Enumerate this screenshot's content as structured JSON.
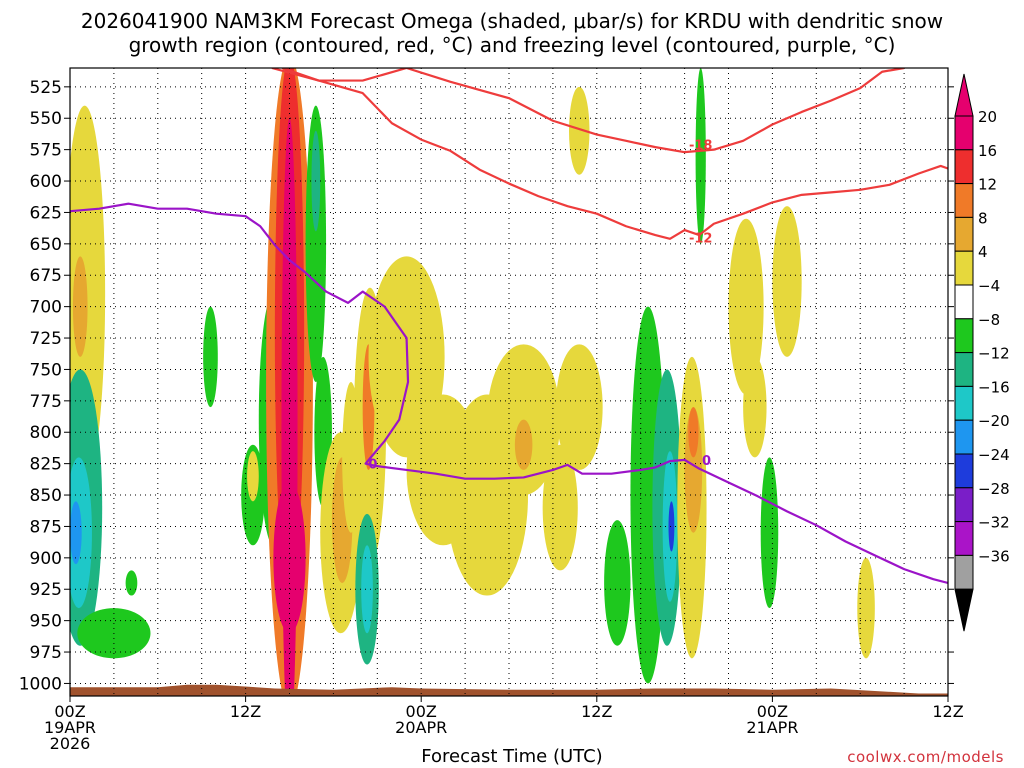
{
  "title_line1": "2026041900 NAM3KM Forecast Omega (shaded, μbar/s) for KRDU with dendritic snow",
  "title_line2": "growth region (contoured, red, °C) and freezing level (contoured, purple, °C)",
  "credit": "coolwx.com/models",
  "chart_data": {
    "type": "heatmap",
    "xlabel": "Forecast Time (UTC)",
    "ylabel": "",
    "x_range_hours": [
      0,
      60
    ],
    "y_range_mb": [
      1010,
      510
    ],
    "x_ticks": [
      {
        "h": 0,
        "line1": "00Z",
        "line2": "19APR",
        "line3": "2026"
      },
      {
        "h": 12,
        "line1": "12Z",
        "line2": "",
        "line3": ""
      },
      {
        "h": 24,
        "line1": "00Z",
        "line2": "20APR",
        "line3": ""
      },
      {
        "h": 36,
        "line1": "12Z",
        "line2": "",
        "line3": ""
      },
      {
        "h": 48,
        "line1": "00Z",
        "line2": "21APR",
        "line3": ""
      },
      {
        "h": 60,
        "line1": "12Z",
        "line2": "",
        "line3": ""
      }
    ],
    "y_ticks": [
      525,
      550,
      575,
      600,
      625,
      650,
      675,
      700,
      725,
      750,
      775,
      800,
      825,
      850,
      875,
      900,
      925,
      950,
      975,
      1000
    ],
    "grid": true,
    "colorbar": {
      "labels": [
        "20",
        "16",
        "12",
        "8",
        "4",
        "−4",
        "−8",
        "−12",
        "−16",
        "−20",
        "−24",
        "−28",
        "−32",
        "−36"
      ],
      "colors": [
        "#e5006e",
        "#ee2e2e",
        "#f07a28",
        "#e6a830",
        "#e6d83c",
        "#ffffff",
        "#1ec81e",
        "#1eb482",
        "#1ec8c8",
        "#1e96f0",
        "#1e3cdc",
        "#7a1ec8",
        "#aa14c8",
        "#a0a0a0"
      ],
      "top_arrow": "#e5006e",
      "bottom_arrow": "#000000"
    },
    "omega_features": [
      {
        "t": 1.0,
        "p": 690,
        "rx": 1.4,
        "ry": 150,
        "value": 6
      },
      {
        "t": 0.7,
        "p": 700,
        "rx": 0.5,
        "ry": 40,
        "value": 10
      },
      {
        "t": 0.7,
        "p": 860,
        "rx": 1.5,
        "ry": 110,
        "value": -11
      },
      {
        "t": 0.6,
        "p": 880,
        "rx": 0.9,
        "ry": 60,
        "value": -14
      },
      {
        "t": 0.4,
        "p": 880,
        "rx": 0.4,
        "ry": 25,
        "value": -17
      },
      {
        "t": 3.0,
        "p": 960,
        "rx": 2.5,
        "ry": 20,
        "value": -6
      },
      {
        "t": 4.2,
        "p": 920,
        "rx": 0.4,
        "ry": 10,
        "value": -6
      },
      {
        "t": 9.6,
        "p": 740,
        "rx": 0.5,
        "ry": 40,
        "value": -5
      },
      {
        "t": 12.5,
        "p": 850,
        "rx": 0.8,
        "ry": 40,
        "value": -6
      },
      {
        "t": 12.5,
        "p": 835,
        "rx": 0.4,
        "ry": 20,
        "value": 5
      },
      {
        "t": 13.9,
        "p": 790,
        "rx": 1.0,
        "ry": 100,
        "value": -6
      },
      {
        "t": 13.9,
        "p": 770,
        "rx": 0.5,
        "ry": 50,
        "value": -10
      },
      {
        "t": 15.0,
        "p": 760,
        "rx": 1.6,
        "ry": 260,
        "value": 12
      },
      {
        "t": 15.0,
        "p": 720,
        "rx": 1.0,
        "ry": 220,
        "value": 16
      },
      {
        "t": 15.0,
        "p": 800,
        "rx": 0.55,
        "ry": 250,
        "value": 20
      },
      {
        "t": 15.0,
        "p": 900,
        "rx": 1.1,
        "ry": 60,
        "value": 20
      },
      {
        "t": 16.8,
        "p": 650,
        "rx": 0.7,
        "ry": 110,
        "value": -6
      },
      {
        "t": 16.8,
        "p": 600,
        "rx": 0.3,
        "ry": 40,
        "value": -9
      },
      {
        "t": 17.3,
        "p": 800,
        "rx": 0.6,
        "ry": 60,
        "value": -6
      },
      {
        "t": 18.5,
        "p": 880,
        "rx": 1.4,
        "ry": 80,
        "value": 6
      },
      {
        "t": 18.6,
        "p": 870,
        "rx": 0.7,
        "ry": 50,
        "value": 10
      },
      {
        "t": 19.2,
        "p": 820,
        "rx": 0.6,
        "ry": 60,
        "value": 5
      },
      {
        "t": 20.5,
        "p": 795,
        "rx": 1.1,
        "ry": 110,
        "value": 5
      },
      {
        "t": 20.4,
        "p": 780,
        "rx": 0.4,
        "ry": 50,
        "value": 12
      },
      {
        "t": 20.3,
        "p": 925,
        "rx": 0.8,
        "ry": 60,
        "value": -8
      },
      {
        "t": 20.3,
        "p": 925,
        "rx": 0.4,
        "ry": 35,
        "value": -15
      },
      {
        "t": 23.0,
        "p": 740,
        "rx": 2.6,
        "ry": 80,
        "value": 5
      },
      {
        "t": 25.5,
        "p": 830,
        "rx": 2.5,
        "ry": 60,
        "value": 5
      },
      {
        "t": 28.5,
        "p": 850,
        "rx": 2.8,
        "ry": 80,
        "value": 5
      },
      {
        "t": 31.0,
        "p": 790,
        "rx": 2.5,
        "ry": 60,
        "value": 5
      },
      {
        "t": 31.0,
        "p": 810,
        "rx": 0.6,
        "ry": 20,
        "value": 9
      },
      {
        "t": 34.8,
        "p": 780,
        "rx": 1.6,
        "ry": 50,
        "value": 5
      },
      {
        "t": 33.5,
        "p": 860,
        "rx": 1.2,
        "ry": 50,
        "value": 5
      },
      {
        "t": 34.8,
        "p": 560,
        "rx": 0.7,
        "ry": 35,
        "value": 5
      },
      {
        "t": 37.4,
        "p": 920,
        "rx": 0.9,
        "ry": 50,
        "value": -6
      },
      {
        "t": 39.5,
        "p": 850,
        "rx": 1.2,
        "ry": 150,
        "value": -6
      },
      {
        "t": 40.8,
        "p": 860,
        "rx": 1.0,
        "ry": 110,
        "value": -8
      },
      {
        "t": 41.0,
        "p": 875,
        "rx": 0.5,
        "ry": 60,
        "value": -15
      },
      {
        "t": 41.1,
        "p": 875,
        "rx": 0.2,
        "ry": 20,
        "value": -22
      },
      {
        "t": 42.5,
        "p": 860,
        "rx": 1.0,
        "ry": 120,
        "value": 5
      },
      {
        "t": 42.6,
        "p": 830,
        "rx": 0.6,
        "ry": 50,
        "value": 11
      },
      {
        "t": 42.6,
        "p": 800,
        "rx": 0.35,
        "ry": 20,
        "value": 14
      },
      {
        "t": 43.1,
        "p": 580,
        "rx": 0.35,
        "ry": 70,
        "value": -6
      },
      {
        "t": 46.2,
        "p": 700,
        "rx": 1.2,
        "ry": 70,
        "value": 5
      },
      {
        "t": 46.8,
        "p": 780,
        "rx": 0.8,
        "ry": 40,
        "value": 5
      },
      {
        "t": 49.0,
        "p": 680,
        "rx": 1.0,
        "ry": 60,
        "value": 5
      },
      {
        "t": 47.8,
        "p": 880,
        "rx": 0.6,
        "ry": 60,
        "value": -6
      },
      {
        "t": 54.4,
        "p": 940,
        "rx": 0.6,
        "ry": 40,
        "value": 5
      }
    ],
    "terrain_color": "#a0522d",
    "series": [
      {
        "name": "-18",
        "kind": "isotherm",
        "color": "#ee3c3c",
        "points": [
          [
            13.8,
            510
          ],
          [
            17,
            520
          ],
          [
            20,
            520
          ],
          [
            23,
            510
          ],
          [
            26,
            521
          ],
          [
            30,
            534
          ],
          [
            33,
            552
          ],
          [
            36,
            563
          ],
          [
            38,
            568
          ],
          [
            40,
            573
          ],
          [
            42,
            577
          ],
          [
            44,
            575
          ],
          [
            46,
            568
          ],
          [
            48,
            555
          ],
          [
            50,
            545
          ],
          [
            52,
            536
          ],
          [
            54,
            526
          ],
          [
            55.5,
            513
          ],
          [
            57,
            510
          ]
        ]
      },
      {
        "name": "-12",
        "kind": "isotherm",
        "color": "#ee3c3c",
        "points": [
          [
            14.5,
            510
          ],
          [
            17,
            520
          ],
          [
            20,
            530
          ],
          [
            22,
            554
          ],
          [
            24,
            567
          ],
          [
            26,
            576
          ],
          [
            28,
            591
          ],
          [
            30,
            602
          ],
          [
            32,
            612
          ],
          [
            34,
            620
          ],
          [
            36,
            626
          ],
          [
            38,
            636
          ],
          [
            40,
            643
          ],
          [
            41,
            646
          ],
          [
            42,
            639
          ],
          [
            43,
            643
          ],
          [
            44,
            634
          ],
          [
            46,
            626
          ],
          [
            48,
            617
          ],
          [
            50,
            611
          ],
          [
            52,
            609
          ],
          [
            54,
            607
          ],
          [
            56,
            603
          ],
          [
            58,
            594
          ],
          [
            59.5,
            588
          ],
          [
            60,
            590
          ]
        ]
      },
      {
        "name": "0",
        "kind": "freezing",
        "color": "#9b14c8",
        "points": [
          [
            0,
            624
          ],
          [
            2,
            622
          ],
          [
            4,
            618
          ],
          [
            6,
            622
          ],
          [
            8,
            622
          ],
          [
            10,
            626
          ],
          [
            12,
            628
          ],
          [
            13,
            636
          ],
          [
            14,
            651
          ],
          [
            15,
            663
          ],
          [
            16,
            672
          ],
          [
            17.5,
            688
          ],
          [
            19,
            697
          ],
          [
            20,
            688
          ],
          [
            21.5,
            700
          ],
          [
            23,
            725
          ],
          [
            23.1,
            760
          ],
          [
            22.5,
            790
          ],
          [
            21.5,
            807
          ],
          [
            20.2,
            825
          ],
          [
            21,
            827
          ],
          [
            23,
            830
          ],
          [
            25,
            833
          ],
          [
            27,
            837
          ],
          [
            29,
            837
          ],
          [
            31,
            836
          ],
          [
            33,
            830
          ],
          [
            34,
            826
          ],
          [
            35,
            833
          ],
          [
            37,
            833
          ],
          [
            39,
            830
          ],
          [
            40,
            828
          ],
          [
            41,
            823
          ],
          [
            42,
            822
          ],
          [
            43,
            829
          ],
          [
            45,
            840
          ],
          [
            47,
            851
          ],
          [
            49,
            863
          ],
          [
            51,
            874
          ],
          [
            53,
            887
          ],
          [
            55,
            898
          ],
          [
            57,
            909
          ],
          [
            59,
            917
          ],
          [
            60,
            920
          ]
        ]
      }
    ],
    "contour_labels": [
      {
        "text": "-18",
        "t": 43.1,
        "p": 571
      },
      {
        "text": "-12",
        "t": 43.1,
        "p": 645
      },
      {
        "text": "0",
        "t": 20.7,
        "p": 825
      },
      {
        "text": "0",
        "t": 43.5,
        "p": 822
      }
    ]
  }
}
